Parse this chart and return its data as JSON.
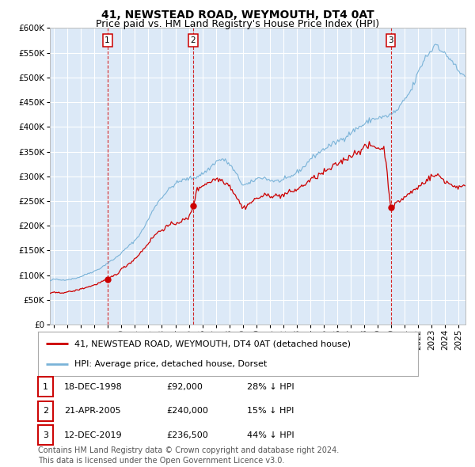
{
  "title": "41, NEWSTEAD ROAD, WEYMOUTH, DT4 0AT",
  "subtitle": "Price paid vs. HM Land Registry's House Price Index (HPI)",
  "ylim": [
    0,
    600000
  ],
  "yticks": [
    0,
    50000,
    100000,
    150000,
    200000,
    250000,
    300000,
    350000,
    400000,
    450000,
    500000,
    550000,
    600000
  ],
  "xlim_start": 1994.7,
  "xlim_end": 2025.5,
  "plot_bg_color": "#dce9f7",
  "grid_color": "#ffffff",
  "hpi_line_color": "#7ab3d8",
  "price_line_color": "#cc0000",
  "sale_marker_color": "#cc0000",
  "vline_color": "#cc0000",
  "sales": [
    {
      "date_num": 1998.96,
      "price": 92000,
      "label": "1"
    },
    {
      "date_num": 2005.31,
      "price": 240000,
      "label": "2"
    },
    {
      "date_num": 2019.96,
      "price": 236500,
      "label": "3"
    }
  ],
  "legend_entries": [
    {
      "label": "41, NEWSTEAD ROAD, WEYMOUTH, DT4 0AT (detached house)",
      "color": "#cc0000"
    },
    {
      "label": "HPI: Average price, detached house, Dorset",
      "color": "#7ab3d8"
    }
  ],
  "table_rows": [
    {
      "num": "1",
      "date": "18-DEC-1998",
      "price": "£92,000",
      "hpi": "28% ↓ HPI"
    },
    {
      "num": "2",
      "date": "21-APR-2005",
      "price": "£240,000",
      "hpi": "15% ↓ HPI"
    },
    {
      "num": "3",
      "date": "12-DEC-2019",
      "price": "£236,500",
      "hpi": "44% ↓ HPI"
    }
  ],
  "footer": "Contains HM Land Registry data © Crown copyright and database right 2024.\nThis data is licensed under the Open Government Licence v3.0.",
  "title_fontsize": 10,
  "subtitle_fontsize": 9,
  "tick_fontsize": 7.5,
  "legend_fontsize": 8,
  "table_fontsize": 8,
  "footer_fontsize": 7
}
